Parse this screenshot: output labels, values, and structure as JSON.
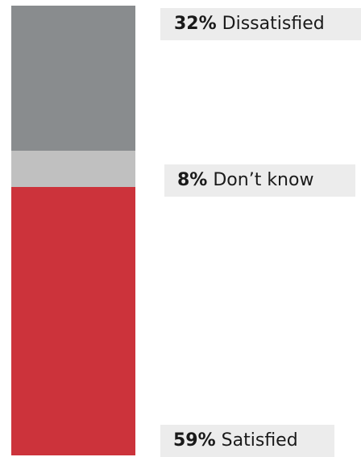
{
  "chart_data": {
    "type": "bar",
    "stacked": true,
    "orientation": "vertical",
    "total": 100,
    "series": [
      {
        "name": "Dissatisfied",
        "value": 32,
        "percent_label": "32%",
        "color": "#898c8e"
      },
      {
        "name": "Don’t know",
        "value": 8,
        "percent_label": "8%",
        "color": "#c0c0c0"
      },
      {
        "name": "Satisfied",
        "value": 59,
        "percent_label": "59%",
        "color": "#cc333b"
      }
    ],
    "label_background": "#ececec"
  }
}
